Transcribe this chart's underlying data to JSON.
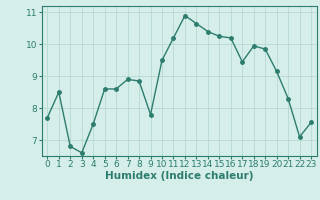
{
  "x": [
    0,
    1,
    2,
    3,
    4,
    5,
    6,
    7,
    8,
    9,
    10,
    11,
    12,
    13,
    14,
    15,
    16,
    17,
    18,
    19,
    20,
    21,
    22,
    23
  ],
  "y": [
    7.7,
    8.5,
    6.8,
    6.6,
    7.5,
    8.6,
    8.6,
    8.9,
    8.85,
    7.8,
    9.5,
    10.2,
    10.9,
    10.65,
    10.4,
    10.25,
    10.2,
    9.45,
    9.95,
    9.85,
    9.15,
    8.3,
    7.1,
    7.55
  ],
  "xlabel": "Humidex (Indice chaleur)",
  "ylabel": "",
  "ylim": [
    6.5,
    11.2
  ],
  "xlim": [
    -0.5,
    23.5
  ],
  "yticks": [
    7,
    8,
    9,
    10,
    11
  ],
  "xticks": [
    0,
    1,
    2,
    3,
    4,
    5,
    6,
    7,
    8,
    9,
    10,
    11,
    12,
    13,
    14,
    15,
    16,
    17,
    18,
    19,
    20,
    21,
    22,
    23
  ],
  "line_color": "#2d7d6e",
  "marker": "o",
  "marker_size": 2.5,
  "bg_color": "#d6eeea",
  "grid_color": "#b0d4cd",
  "tick_label_color": "#2d7d6e",
  "axis_label_color": "#2d7d6e",
  "font_size_ticks": 6.5,
  "font_size_xlabel": 7.5
}
